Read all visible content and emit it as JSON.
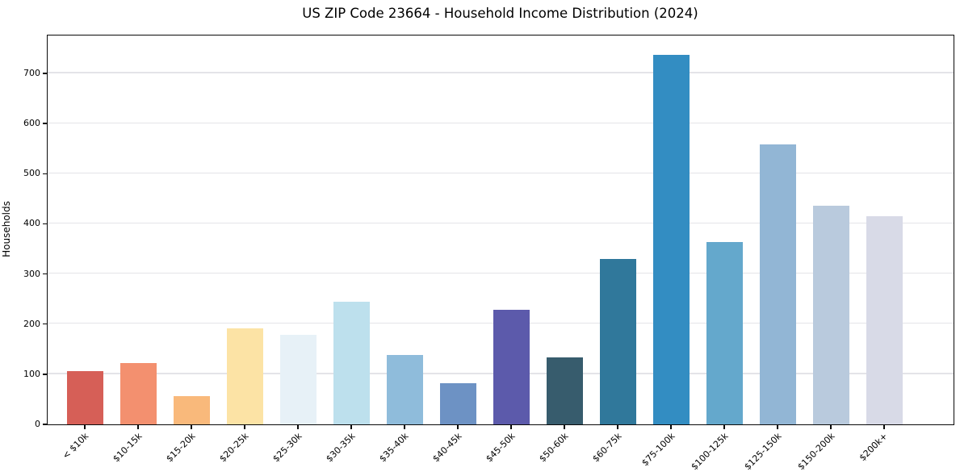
{
  "chart_data": {
    "type": "bar",
    "title": "US ZIP Code 23664 - Household Income Distribution (2024)",
    "xlabel": "",
    "ylabel": "Households",
    "ylim": [
      0,
      774
    ],
    "grid": true,
    "legend": "none",
    "ytick_labels": [
      "0",
      "100",
      "200",
      "300",
      "400",
      "500",
      "600",
      "700"
    ],
    "yticks": [
      0,
      100,
      200,
      300,
      400,
      500,
      600,
      700
    ],
    "categories": [
      "< $10k",
      "$10-15k",
      "$15-20k",
      "$20-25k",
      "$25-30k",
      "$30-35k",
      "$35-40k",
      "$40-45k",
      "$45-50k",
      "$50-60k",
      "$60-75k",
      "$75-100k",
      "$100-125k",
      "$125-150k",
      "$150-200k",
      "$200k+"
    ],
    "values": [
      107,
      122,
      57,
      192,
      179,
      245,
      139,
      82,
      229,
      133,
      330,
      737,
      363,
      559,
      436,
      415
    ],
    "bar_colors": [
      "#d65f57",
      "#f3906f",
      "#f9b97b",
      "#fce3a5",
      "#e7f1f7",
      "#bde0ed",
      "#8fbcdb",
      "#6d92c4",
      "#5c5aab",
      "#375c6d",
      "#30789b",
      "#338dc2",
      "#64a8cc",
      "#92b6d5",
      "#b9cadd",
      "#d8dae7"
    ]
  }
}
